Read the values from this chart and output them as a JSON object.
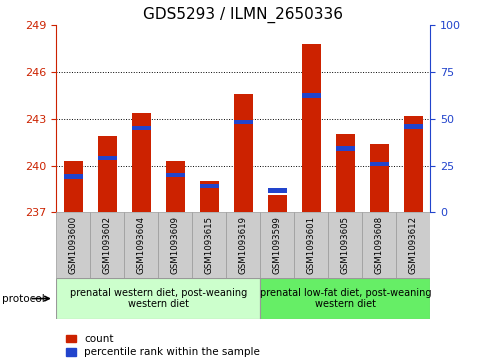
{
  "title": "GDS5293 / ILMN_2650336",
  "samples": [
    "GSM1093600",
    "GSM1093602",
    "GSM1093604",
    "GSM1093609",
    "GSM1093615",
    "GSM1093619",
    "GSM1093599",
    "GSM1093601",
    "GSM1093605",
    "GSM1093608",
    "GSM1093612"
  ],
  "red_values": [
    240.3,
    241.9,
    243.4,
    240.3,
    239.0,
    244.6,
    238.1,
    247.8,
    242.0,
    241.4,
    243.2
  ],
  "blue_values": [
    239.3,
    240.5,
    242.4,
    239.4,
    238.7,
    242.8,
    238.4,
    244.5,
    241.1,
    240.1,
    242.5
  ],
  "blue_pct": [
    15,
    30,
    38,
    18,
    8,
    48,
    5,
    62,
    32,
    25,
    42
  ],
  "ymin": 237,
  "ymax": 249,
  "yticks": [
    237,
    240,
    243,
    246,
    249
  ],
  "y2min": 0,
  "y2max": 100,
  "y2ticks": [
    0,
    25,
    50,
    75,
    100
  ],
  "group1_count": 6,
  "group1_label": "prenatal western diet, post-weaning\nwestern diet",
  "group2_label": "prenatal low-fat diet, post-weaning\nwestern diet",
  "protocol_label": "protocol",
  "bar_color": "#cc2200",
  "blue_color": "#2244cc",
  "group1_bg": "#ccffcc",
  "group2_bg": "#66ee66",
  "sample_bg": "#cccccc",
  "legend_red": "count",
  "legend_blue": "percentile rank within the sample",
  "title_fontsize": 11,
  "tick_fontsize": 8,
  "bar_width": 0.55
}
